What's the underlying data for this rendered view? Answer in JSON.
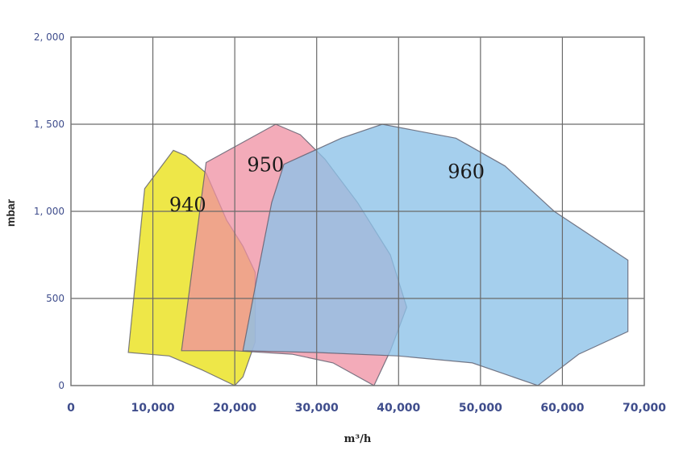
{
  "chart_data": {
    "type": "area",
    "xlabel": "m³/h",
    "ylabel": "mbar",
    "xlim": [
      0,
      70000
    ],
    "ylim": [
      0,
      2000
    ],
    "x_ticks": [
      "0",
      "10,000",
      "20,000",
      "30,000",
      "40,000",
      "50,000",
      "60,000",
      "70,000"
    ],
    "y_ticks": [
      "0",
      "500",
      "1, 000",
      "1, 500",
      "2, 000"
    ],
    "grid": true,
    "series": [
      {
        "name": "940",
        "color": "#ece434",
        "opacity": 0.9,
        "points": [
          [
            7000,
            190
          ],
          [
            9000,
            1130
          ],
          [
            12500,
            1350
          ],
          [
            14000,
            1320
          ],
          [
            16500,
            1220
          ],
          [
            19000,
            950
          ],
          [
            21000,
            800
          ],
          [
            22500,
            650
          ],
          [
            22500,
            250
          ],
          [
            21000,
            50
          ],
          [
            20000,
            0
          ],
          [
            16000,
            90
          ],
          [
            12000,
            170
          ],
          [
            7000,
            190
          ]
        ]
      },
      {
        "name": "950",
        "color": "#ef8fa2",
        "opacity": 0.75,
        "points": [
          [
            13500,
            200
          ],
          [
            16500,
            1280
          ],
          [
            25000,
            1500
          ],
          [
            28000,
            1440
          ],
          [
            31000,
            1300
          ],
          [
            35000,
            1050
          ],
          [
            39000,
            750
          ],
          [
            41000,
            450
          ],
          [
            39000,
            200
          ],
          [
            37000,
            0
          ],
          [
            32000,
            130
          ],
          [
            27000,
            180
          ],
          [
            20000,
            200
          ],
          [
            13500,
            200
          ]
        ]
      },
      {
        "name": "960",
        "color": "#8cc2e8",
        "opacity": 0.78,
        "points": [
          [
            21000,
            200
          ],
          [
            23000,
            690
          ],
          [
            24500,
            1050
          ],
          [
            26000,
            1270
          ],
          [
            33000,
            1420
          ],
          [
            38000,
            1500
          ],
          [
            47000,
            1420
          ],
          [
            53000,
            1260
          ],
          [
            59000,
            1000
          ],
          [
            68000,
            720
          ],
          [
            68000,
            310
          ],
          [
            62000,
            180
          ],
          [
            57000,
            0
          ],
          [
            49000,
            130
          ],
          [
            40000,
            170
          ],
          [
            30000,
            190
          ],
          [
            21000,
            200
          ]
        ]
      }
    ],
    "annotations": [
      "940",
      "950",
      "960"
    ]
  }
}
